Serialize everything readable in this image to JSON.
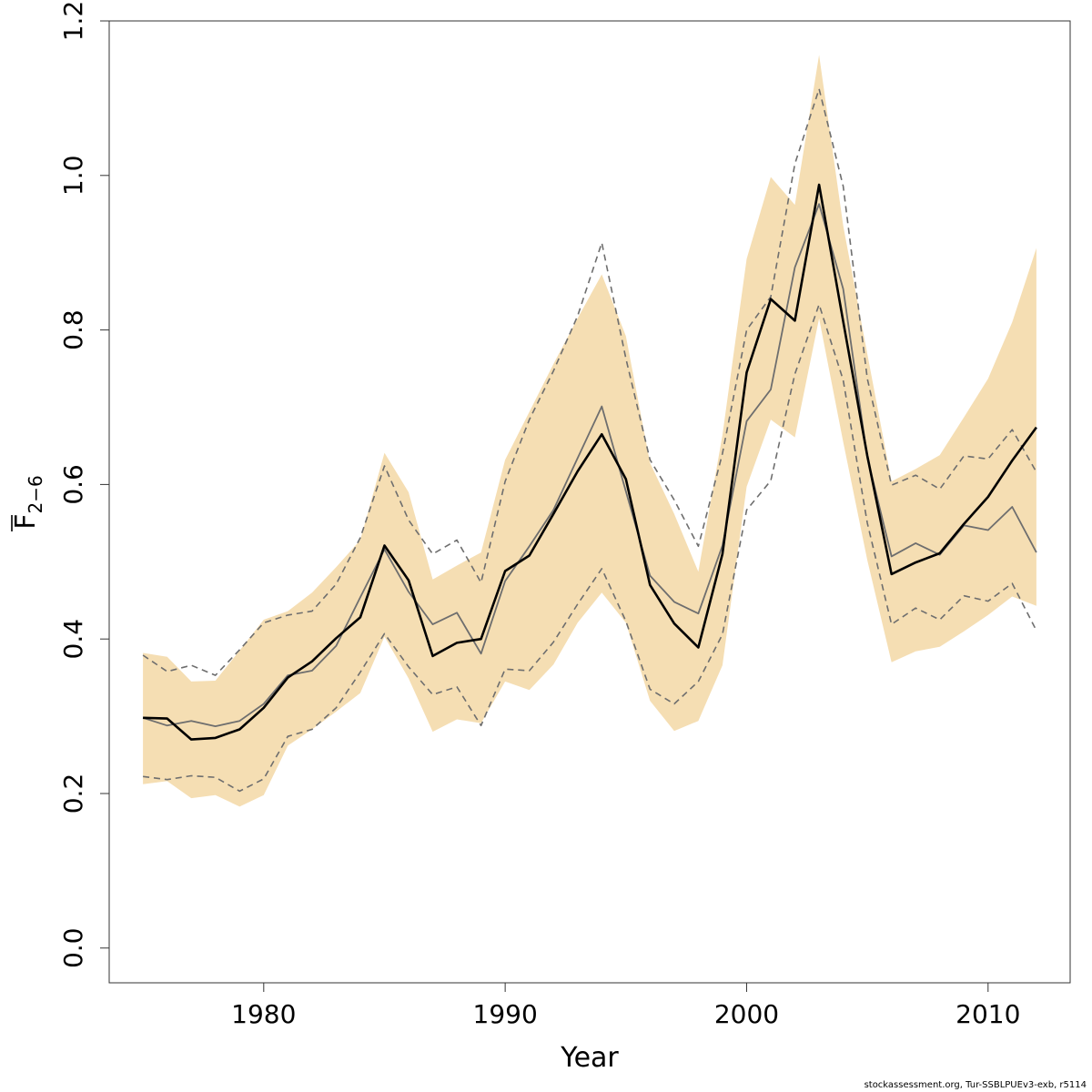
{
  "chart_data": {
    "type": "line",
    "xlabel": "Year",
    "ylabel_main": "F",
    "ylabel_sub": "2−6",
    "xlim": [
      1973.6,
      2013.4
    ],
    "ylim": [
      -0.045,
      1.2
    ],
    "xticks": [
      1980,
      1990,
      2000,
      2010
    ],
    "xtick_labels": [
      "1980",
      "1990",
      "2000",
      "2010"
    ],
    "yticks": [
      0.0,
      0.2,
      0.4,
      0.6,
      0.8,
      1.0,
      1.2
    ],
    "ytick_labels": [
      "0.0",
      "0.2",
      "0.4",
      "0.6",
      "0.8",
      "1.0",
      "1.2"
    ],
    "colors": {
      "band": "#f5deb3",
      "estimate": "#000000",
      "comparison": "#6e6e6e"
    },
    "x": [
      1975,
      1976,
      1977,
      1978,
      1979,
      1980,
      1981,
      1982,
      1983,
      1984,
      1985,
      1986,
      1987,
      1988,
      1989,
      1990,
      1991,
      1992,
      1993,
      1994,
      1995,
      1996,
      1997,
      1998,
      1999,
      2000,
      2001,
      2002,
      2003,
      2004,
      2005,
      2006,
      2007,
      2008,
      2009,
      2010,
      2011,
      2012
    ],
    "series": [
      {
        "role": "band_upper",
        "values": [
          0.382,
          0.377,
          0.345,
          0.346,
          0.385,
          0.425,
          0.436,
          0.46,
          0.493,
          0.528,
          0.641,
          0.59,
          0.477,
          0.495,
          0.512,
          0.632,
          0.694,
          0.756,
          0.815,
          0.872,
          0.792,
          0.628,
          0.562,
          0.487,
          0.664,
          0.892,
          0.998,
          0.962,
          1.156,
          0.935,
          0.769,
          0.604,
          0.62,
          0.638,
          0.687,
          0.737,
          0.81,
          0.906
        ]
      },
      {
        "role": "band_lower",
        "values": [
          0.212,
          0.216,
          0.194,
          0.198,
          0.183,
          0.198,
          0.262,
          0.283,
          0.306,
          0.33,
          0.403,
          0.349,
          0.28,
          0.296,
          0.291,
          0.345,
          0.334,
          0.367,
          0.421,
          0.46,
          0.421,
          0.32,
          0.281,
          0.294,
          0.366,
          0.597,
          0.684,
          0.661,
          0.815,
          0.655,
          0.502,
          0.37,
          0.384,
          0.39,
          0.41,
          0.431,
          0.455,
          0.443
        ]
      },
      {
        "role": "upper_dashed",
        "values": [
          0.379,
          0.358,
          0.366,
          0.353,
          0.386,
          0.421,
          0.431,
          0.436,
          0.471,
          0.531,
          0.624,
          0.554,
          0.51,
          0.528,
          0.473,
          0.604,
          0.684,
          0.747,
          0.818,
          0.913,
          0.763,
          0.632,
          0.58,
          0.52,
          0.64,
          0.8,
          0.843,
          1.015,
          1.112,
          0.986,
          0.737,
          0.599,
          0.612,
          0.594,
          0.637,
          0.633,
          0.671,
          0.616
        ]
      },
      {
        "role": "lower_dashed",
        "values": [
          0.222,
          0.218,
          0.223,
          0.221,
          0.203,
          0.219,
          0.274,
          0.283,
          0.311,
          0.357,
          0.407,
          0.364,
          0.328,
          0.338,
          0.288,
          0.361,
          0.359,
          0.396,
          0.445,
          0.491,
          0.423,
          0.335,
          0.316,
          0.345,
          0.406,
          0.567,
          0.605,
          0.743,
          0.833,
          0.735,
          0.55,
          0.419,
          0.44,
          0.425,
          0.456,
          0.449,
          0.472,
          0.411
        ]
      },
      {
        "role": "comparison",
        "values": [
          0.298,
          0.288,
          0.294,
          0.287,
          0.294,
          0.316,
          0.353,
          0.359,
          0.391,
          0.454,
          0.516,
          0.461,
          0.419,
          0.434,
          0.381,
          0.475,
          0.52,
          0.567,
          0.634,
          0.701,
          0.591,
          0.482,
          0.448,
          0.433,
          0.521,
          0.682,
          0.723,
          0.881,
          0.963,
          0.853,
          0.635,
          0.507,
          0.524,
          0.509,
          0.547,
          0.541,
          0.571,
          0.512
        ]
      },
      {
        "role": "estimate",
        "values": [
          0.298,
          0.297,
          0.27,
          0.272,
          0.283,
          0.311,
          0.35,
          0.371,
          0.401,
          0.428,
          0.521,
          0.476,
          0.378,
          0.395,
          0.4,
          0.488,
          0.508,
          0.562,
          0.617,
          0.665,
          0.607,
          0.47,
          0.42,
          0.389,
          0.51,
          0.745,
          0.84,
          0.812,
          0.988,
          0.811,
          0.637,
          0.484,
          0.499,
          0.511,
          0.549,
          0.584,
          0.631,
          0.674
        ]
      }
    ]
  },
  "footer": {
    "text": "stockassessment.org, Tur-SSBLPUEv3-exb, r5114"
  }
}
